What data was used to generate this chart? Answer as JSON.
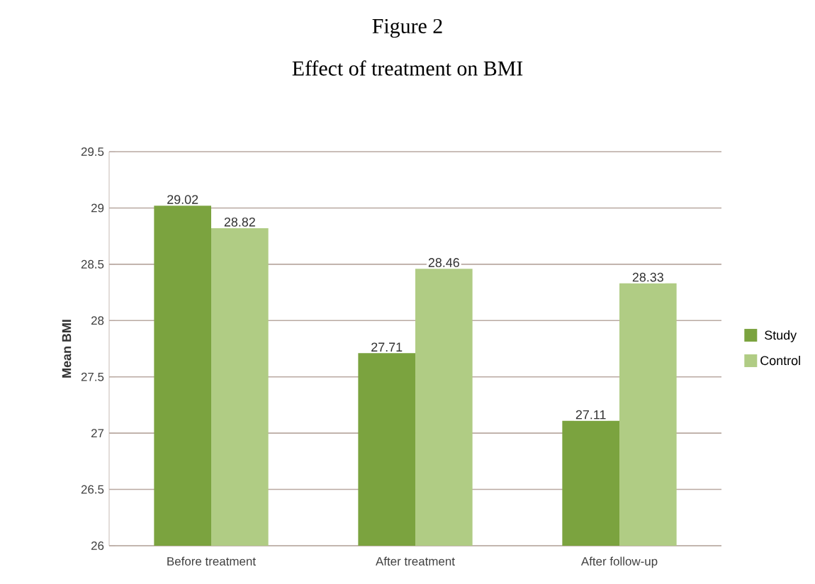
{
  "chart_data": {
    "type": "bar",
    "title": "Figure 2",
    "subtitle": "Effect of treatment on BMI",
    "ylabel": "Mean BMI",
    "categories": [
      "Before treatment",
      "After treatment",
      "After follow-up"
    ],
    "series": [
      {
        "name": "Study",
        "color": "#7ba33f",
        "values": [
          29.02,
          27.71,
          27.11
        ]
      },
      {
        "name": "Control",
        "color": "#b0cc84",
        "values": [
          28.82,
          28.46,
          28.33
        ]
      }
    ],
    "ylim": [
      26,
      29.5
    ],
    "yticks": [
      26,
      26.5,
      27,
      27.5,
      28,
      28.5,
      29,
      29.5
    ],
    "grid": "y",
    "legend": "right",
    "data_labels": true
  }
}
